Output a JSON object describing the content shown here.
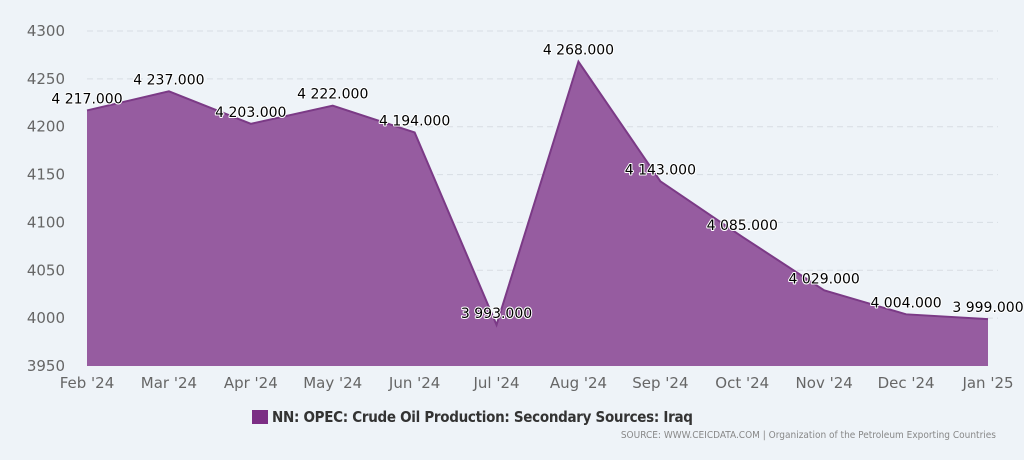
{
  "chart_data": {
    "type": "area",
    "categories": [
      "Feb '24",
      "Mar '24",
      "Apr '24",
      "May '24",
      "Jun '24",
      "Jul '24",
      "Aug '24",
      "Sep '24",
      "Oct '24",
      "Nov '24",
      "Dec '24",
      "Jan '25"
    ],
    "series": [
      {
        "name": "NN: OPEC: Crude Oil Production: Secondary Sources: Iraq",
        "values": [
          4217,
          4237,
          4203,
          4222,
          4194,
          3993,
          4268,
          4143,
          4085,
          4029,
          4004,
          3999
        ],
        "labels": [
          "4 217.000",
          "4 237.000",
          "4 203.000",
          "4 222.000",
          "4 194.000",
          "3 993.000",
          "4 268.000",
          "4 143.000",
          "4 085.000",
          "4 029.000",
          "4 004.000",
          "3 999.000"
        ]
      }
    ],
    "yticks": [
      3950,
      4000,
      4050,
      4100,
      4150,
      4200,
      4250,
      4300
    ],
    "ylim": [
      3950,
      4300
    ],
    "grid": true,
    "legend_position": "bottom",
    "colors": {
      "fill": "#965ca0",
      "line": "#7b3a86",
      "legend": "#7b2d84"
    }
  },
  "legend": {
    "label": "NN: OPEC: Crude Oil Production: Secondary Sources: Iraq"
  },
  "source": "SOURCE: WWW.CEICDATA.COM | Organization of the Petroleum Exporting Countries"
}
